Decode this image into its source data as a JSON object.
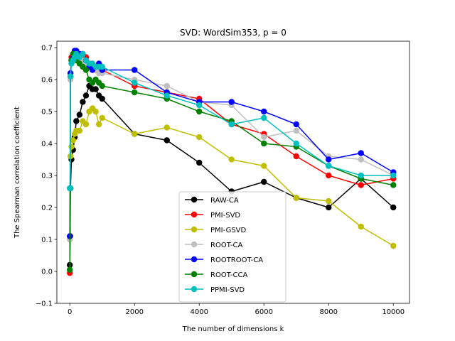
{
  "chart_data": {
    "type": "line",
    "title": "SVD: WordSim353, p = 0",
    "xlabel": "The number of dimensions k",
    "ylabel": "The Spearman correlation coefficient",
    "xlim": [
      -400,
      10500
    ],
    "ylim": [
      -0.1,
      0.72
    ],
    "xticks": [
      0,
      2000,
      4000,
      6000,
      8000,
      10000
    ],
    "yticks": [
      -0.1,
      0.0,
      0.1,
      0.2,
      0.3,
      0.4,
      0.5,
      0.6,
      0.7
    ],
    "xtick_labels": [
      "0",
      "2000",
      "4000",
      "6000",
      "8000",
      "10000"
    ],
    "ytick_labels": [
      "−0.1",
      "0.0",
      "0.1",
      "0.2",
      "0.3",
      "0.4",
      "0.5",
      "0.6",
      "0.7"
    ],
    "grid": false,
    "legend_position": "lower-center",
    "series": [
      {
        "name": "RAW-CA",
        "color": "#000000",
        "x": [
          0,
          10,
          20,
          50,
          100,
          150,
          200,
          300,
          400,
          500,
          600,
          700,
          800,
          900,
          1000,
          2000,
          3000,
          4000,
          5000,
          6000,
          7000,
          8000,
          9000,
          10000
        ],
        "y": [
          0.02,
          0.11,
          0.26,
          0.35,
          0.38,
          0.42,
          0.47,
          0.49,
          0.53,
          0.55,
          0.58,
          0.57,
          0.57,
          0.55,
          0.54,
          0.43,
          0.41,
          0.34,
          0.25,
          0.28,
          0.23,
          0.2,
          0.29,
          0.2
        ]
      },
      {
        "name": "PMI-SVD",
        "color": "#ff0000",
        "x": [
          0,
          10,
          20,
          50,
          100,
          150,
          200,
          300,
          400,
          500,
          600,
          700,
          800,
          900,
          1000,
          2000,
          3000,
          4000,
          5000,
          6000,
          7000,
          8000,
          9000,
          10000
        ],
        "y": [
          -0.005,
          0.26,
          0.61,
          0.67,
          0.68,
          0.68,
          0.68,
          0.68,
          0.67,
          0.67,
          0.65,
          0.64,
          0.63,
          0.63,
          0.63,
          0.58,
          0.56,
          0.54,
          0.46,
          0.43,
          0.36,
          0.3,
          0.27,
          0.29
        ]
      },
      {
        "name": "PMI-GSVD",
        "color": "#bfbf00",
        "x": [
          0,
          10,
          20,
          50,
          100,
          150,
          200,
          300,
          400,
          500,
          600,
          700,
          800,
          900,
          1000,
          2000,
          3000,
          4000,
          5000,
          6000,
          7000,
          8000,
          9000,
          10000
        ],
        "y": [
          0.1,
          0.26,
          0.36,
          0.39,
          0.41,
          0.43,
          0.44,
          0.44,
          0.47,
          0.46,
          0.5,
          0.51,
          0.5,
          0.46,
          0.48,
          0.43,
          0.45,
          0.42,
          0.35,
          0.33,
          0.23,
          0.22,
          0.14,
          0.08
        ]
      },
      {
        "name": "ROOT-CA",
        "color": "#bfbfbf",
        "x": [
          0,
          10,
          20,
          50,
          100,
          150,
          200,
          300,
          400,
          500,
          600,
          700,
          800,
          900,
          1000,
          2000,
          3000,
          4000,
          5000,
          6000,
          7000,
          8000,
          9000,
          10000
        ],
        "y": [
          0.1,
          0.26,
          0.6,
          0.65,
          0.67,
          0.67,
          0.66,
          0.66,
          0.66,
          0.65,
          0.64,
          0.63,
          0.63,
          0.62,
          0.62,
          0.6,
          0.58,
          0.53,
          0.52,
          0.42,
          0.44,
          0.36,
          0.35,
          0.3
        ]
      },
      {
        "name": "ROOTROOT-CA",
        "color": "#0000ff",
        "x": [
          0,
          10,
          20,
          50,
          100,
          150,
          200,
          300,
          400,
          500,
          600,
          700,
          800,
          900,
          1000,
          2000,
          3000,
          4000,
          5000,
          6000,
          7000,
          8000,
          9000,
          10000
        ],
        "y": [
          0.11,
          0.26,
          0.62,
          0.66,
          0.67,
          0.69,
          0.69,
          0.68,
          0.68,
          0.66,
          0.64,
          0.63,
          0.64,
          0.65,
          0.63,
          0.63,
          0.56,
          0.53,
          0.53,
          0.5,
          0.46,
          0.35,
          0.37,
          0.31
        ]
      },
      {
        "name": "ROOT-CCA",
        "color": "#008000",
        "x": [
          0,
          10,
          20,
          50,
          100,
          150,
          200,
          300,
          400,
          500,
          600,
          700,
          800,
          900,
          1000,
          2000,
          3000,
          4000,
          5000,
          6000,
          7000,
          8000,
          9000,
          10000
        ],
        "y": [
          0.005,
          0.26,
          0.61,
          0.66,
          0.68,
          0.67,
          0.66,
          0.65,
          0.64,
          0.63,
          0.6,
          0.59,
          0.6,
          0.59,
          0.58,
          0.56,
          0.54,
          0.5,
          0.47,
          0.4,
          0.39,
          0.33,
          0.29,
          0.27
        ]
      },
      {
        "name": "PPMI-SVD",
        "color": "#00bfbf",
        "x": [
          0,
          10,
          20,
          50,
          100,
          150,
          200,
          300,
          400,
          500,
          600,
          700,
          800,
          900,
          1000,
          2000,
          3000,
          4000,
          5000,
          6000,
          7000,
          8000,
          9000,
          10000
        ],
        "y": [
          0.26,
          0.26,
          0.61,
          0.65,
          0.66,
          0.67,
          0.68,
          0.67,
          0.68,
          0.66,
          0.65,
          0.65,
          0.64,
          0.64,
          0.64,
          0.59,
          0.55,
          0.52,
          0.46,
          0.48,
          0.4,
          0.33,
          0.3,
          0.3
        ]
      }
    ]
  }
}
